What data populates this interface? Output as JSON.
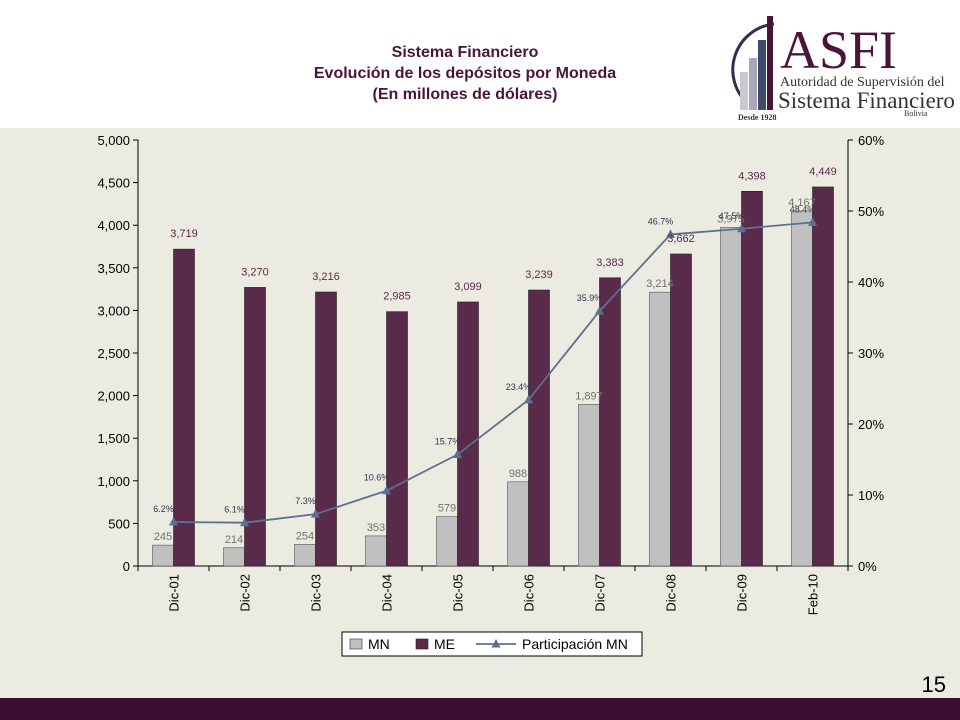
{
  "title": {
    "line1": "Sistema Financiero",
    "line2": "Evolución de los depósitos por Moneda",
    "line3": "(En millones de dólares)"
  },
  "logo": {
    "brand": "ASFI",
    "line1": "Autoridad de Supervisión del",
    "line2": "Sistema Financiero",
    "country": "Bolivia",
    "since": "Desde 1928"
  },
  "page_number": "15",
  "colors": {
    "mn": "#c0c0c0",
    "me": "#5a2a4a",
    "line": "#5f6f8f",
    "chart_bg": "#ebebe1",
    "bar_band": "#3b0f30"
  },
  "chart_data": {
    "type": "bar",
    "categories": [
      "Dic-01",
      "Dic-02",
      "Dic-03",
      "Dic-04",
      "Dic-05",
      "Dic-06",
      "Dic-07",
      "Dic-08",
      "Dic-09",
      "Feb-10"
    ],
    "series": [
      {
        "name": "MN",
        "values": [
          245,
          214,
          254,
          353,
          579,
          988,
          1897,
          3214,
          3975,
          4167
        ],
        "labels": [
          "245",
          "214",
          "254",
          "353",
          "579",
          "988",
          "1,897",
          "3,214",
          "3,975",
          "4,167"
        ]
      },
      {
        "name": "ME",
        "values": [
          3719,
          3270,
          3216,
          2985,
          3099,
          3239,
          3383,
          3662,
          4398,
          4449
        ],
        "labels": [
          "3,719",
          "3,270",
          "3,216",
          "2,985",
          "3,099",
          "3,239",
          "3,383",
          "3,662",
          "4,398",
          "4,449"
        ]
      }
    ],
    "line_series": {
      "name": "Participación MN",
      "axis": "right",
      "values": [
        6.2,
        6.1,
        7.3,
        10.6,
        15.7,
        23.4,
        35.9,
        46.7,
        47.5,
        48.4
      ],
      "labels": [
        "6.2%",
        "6.1%",
        "7.3%",
        "10.6%",
        "15.7%",
        "23.4%",
        "35.9%",
        "46.7%",
        "47.5%",
        "48.4%"
      ]
    },
    "y_left": {
      "min": 0,
      "max": 5000,
      "ticks": [
        "0",
        "500",
        "1,000",
        "1,500",
        "2,000",
        "2,500",
        "3,000",
        "3,500",
        "4,000",
        "4,500",
        "5,000"
      ]
    },
    "y_right": {
      "min": 0,
      "max": 60,
      "ticks": [
        "0%",
        "10%",
        "20%",
        "30%",
        "40%",
        "50%",
        "60%"
      ]
    },
    "legend": [
      "MN",
      "ME",
      "Participación MN"
    ],
    "legend_position": "bottom",
    "grid": false
  }
}
